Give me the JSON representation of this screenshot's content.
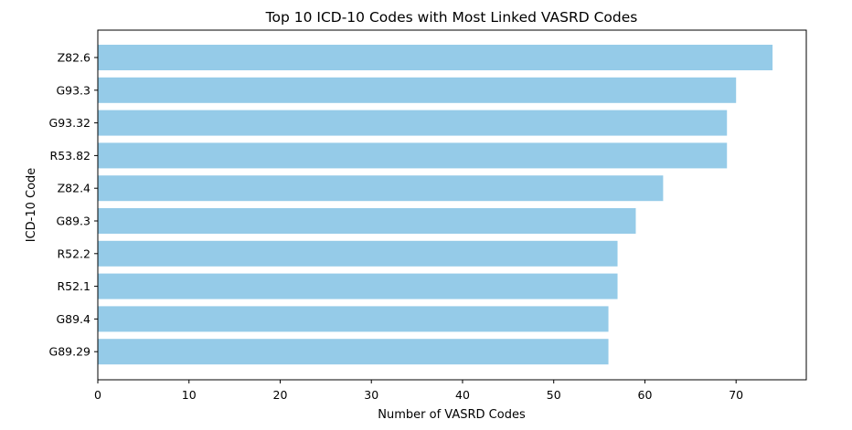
{
  "chart_data": {
    "type": "bar",
    "orientation": "horizontal",
    "title": "Top 10 ICD-10 Codes with Most Linked VASRD Codes",
    "xlabel": "Number of VASRD Codes",
    "ylabel": "ICD-10 Code",
    "categories": [
      "Z82.6",
      "G93.3",
      "G93.32",
      "R53.82",
      "Z82.4",
      "G89.3",
      "R52.2",
      "R52.1",
      "G89.4",
      "G89.29"
    ],
    "values": [
      74,
      70,
      69,
      69,
      62,
      59,
      57,
      57,
      56,
      56
    ],
    "xlim": [
      0,
      77.7
    ],
    "xticks": [
      "0",
      "10",
      "20",
      "30",
      "40",
      "50",
      "60",
      "70"
    ],
    "bar_color": "#95cbe8",
    "grid": false,
    "legend": "none"
  }
}
